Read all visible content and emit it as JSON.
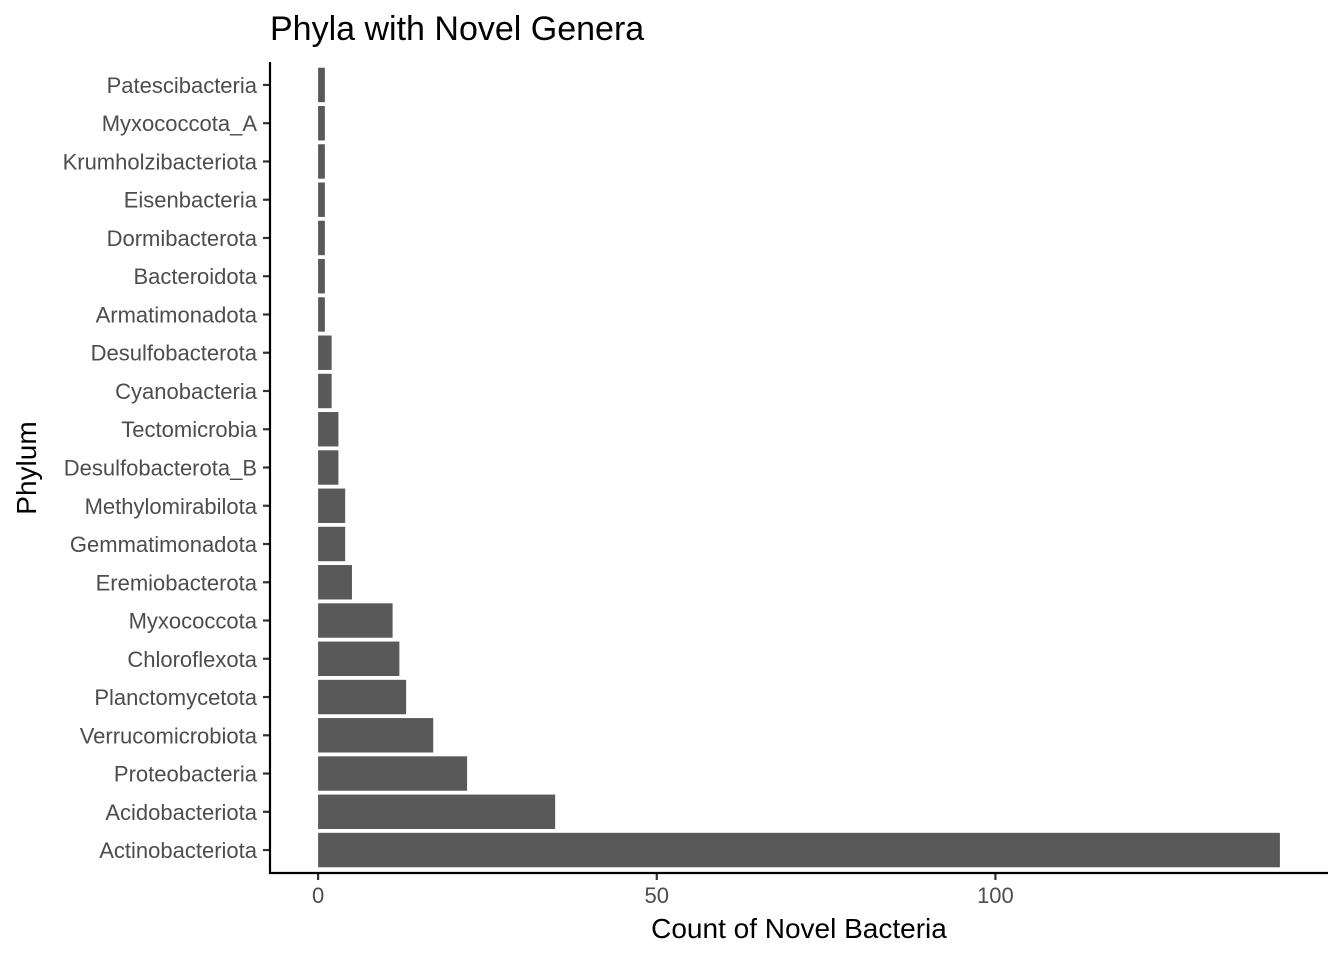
{
  "chart_data": {
    "type": "bar",
    "orientation": "horizontal",
    "title": "Phyla with Novel Genera",
    "xlabel": "Count of Novel Bacteria",
    "ylabel": "Phylum",
    "categories": [
      "Actinobacteriota",
      "Acidobacteriota",
      "Proteobacteria",
      "Verrucomicrobiota",
      "Planctomycetota",
      "Chloroflexota",
      "Myxococcota",
      "Eremiobacterota",
      "Gemmatimonadota",
      "Methylomirabilota",
      "Desulfobacterota_B",
      "Tectomicrobia",
      "Cyanobacteria",
      "Desulfobacterota",
      "Armatimonadota",
      "Bacteroidota",
      "Dormibacterota",
      "Eisenbacteria",
      "Krumholzibacteriota",
      "Myxococcota_A",
      "Patescibacteria"
    ],
    "values": [
      142,
      35,
      22,
      17,
      13,
      12,
      11,
      5,
      4,
      4,
      3,
      3,
      2,
      2,
      1,
      1,
      1,
      1,
      1,
      1,
      1
    ],
    "xticks": [
      0,
      50,
      100
    ],
    "xtick_labels": [
      "0",
      "50",
      "100"
    ],
    "xlim": [
      -7.1,
      149.1
    ],
    "bar_color": "#595959",
    "grid": false,
    "legend": "none"
  }
}
